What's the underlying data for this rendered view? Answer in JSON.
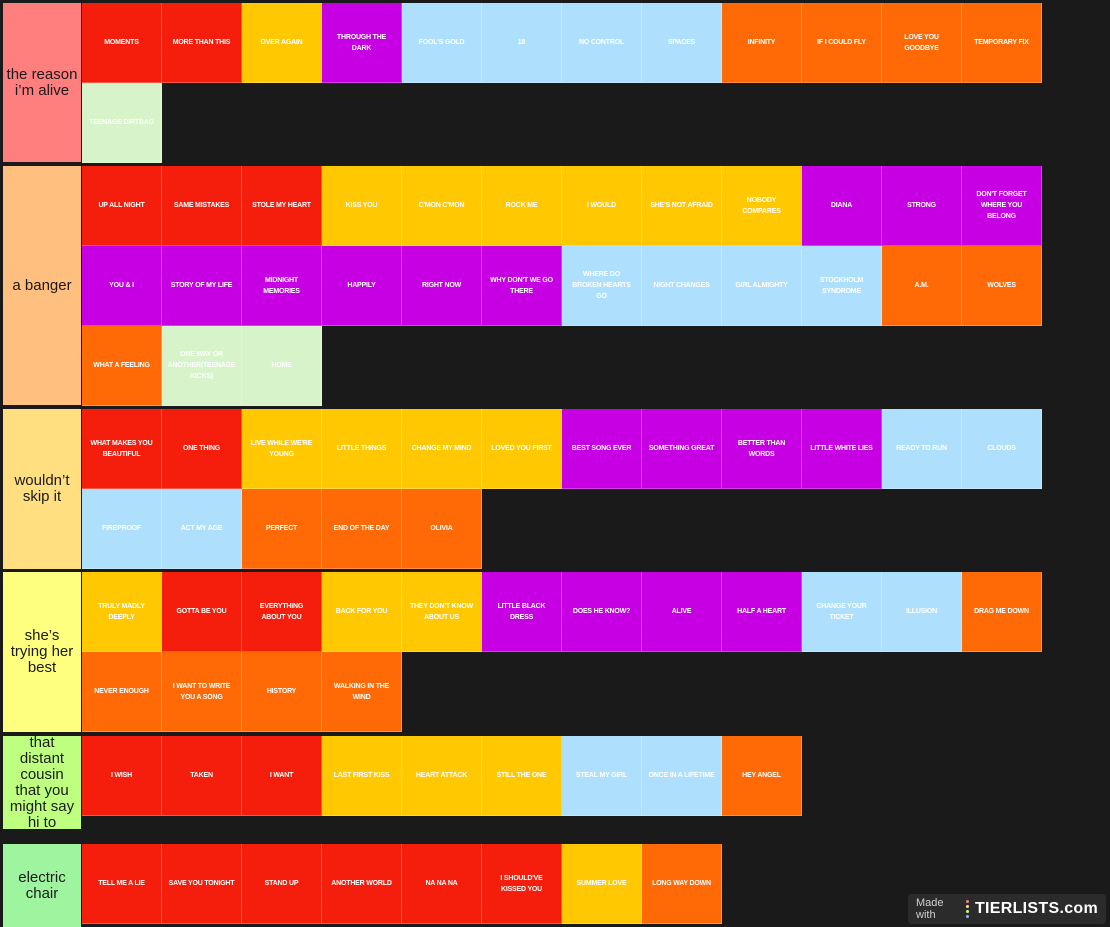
{
  "colors": {
    "red": "#f51d0b",
    "yellow": "#ffc800",
    "purple": "#c600e3",
    "blue": "#aee0fd",
    "orange": "#ff6a06",
    "green": "#d6f3c9",
    "background": "#1a1a1a"
  },
  "tiers": [
    {
      "label": "the reason i’m alive",
      "color": "#ff7f7f",
      "items": [
        {
          "text": "MOMENTS",
          "color": "red"
        },
        {
          "text": "MORE THAN THIS",
          "color": "red"
        },
        {
          "text": "OVER AGAIN",
          "color": "yellow"
        },
        {
          "text": "THROUGH THE DARK",
          "color": "purple"
        },
        {
          "text": "FOOL'S GOLD",
          "color": "blue"
        },
        {
          "text": "18",
          "color": "blue"
        },
        {
          "text": "NO CONTROL",
          "color": "blue"
        },
        {
          "text": "SPACES",
          "color": "blue"
        },
        {
          "text": "INFINITY",
          "color": "orange"
        },
        {
          "text": "IF I COULD FLY",
          "color": "orange"
        },
        {
          "text": "LOVE YOU GOODBYE",
          "color": "orange"
        },
        {
          "text": "TEMPORARY FIX",
          "color": "orange"
        },
        {
          "text": "TEENAGE DIRTBAG",
          "color": "green"
        }
      ]
    },
    {
      "label": "a banger",
      "color": "#ffbf7f",
      "items": [
        {
          "text": "UP ALL NIGHT",
          "color": "red"
        },
        {
          "text": "SAME MISTAKES",
          "color": "red"
        },
        {
          "text": "STOLE MY HEART",
          "color": "red"
        },
        {
          "text": "KISS YOU",
          "color": "yellow"
        },
        {
          "text": "C'MON C'MON",
          "color": "yellow"
        },
        {
          "text": "ROCK ME",
          "color": "yellow"
        },
        {
          "text": "I WOULD",
          "color": "yellow"
        },
        {
          "text": "SHE'S NOT AFRAID",
          "color": "yellow"
        },
        {
          "text": "NOBODY COMPARES",
          "color": "yellow"
        },
        {
          "text": "DIANA",
          "color": "purple"
        },
        {
          "text": "STRONG",
          "color": "purple"
        },
        {
          "text": "DON'T FORGET WHERE YOU BELONG",
          "color": "purple"
        },
        {
          "text": "YOU & I",
          "color": "purple"
        },
        {
          "text": "STORY OF MY LIFE",
          "color": "purple"
        },
        {
          "text": "MIDNIGHT MEMORIES",
          "color": "purple"
        },
        {
          "text": "HAPPILY",
          "color": "purple"
        },
        {
          "text": "RIGHT NOW",
          "color": "purple"
        },
        {
          "text": "WHY DON'T WE GO THERE",
          "color": "purple"
        },
        {
          "text": "WHERE DO BROKEN HEARTS GO",
          "color": "blue"
        },
        {
          "text": "NIGHT CHANGES",
          "color": "blue"
        },
        {
          "text": "GIRL ALMIGHTY",
          "color": "blue"
        },
        {
          "text": "STOCKHOLM SYNDROME",
          "color": "blue"
        },
        {
          "text": "A.M.",
          "color": "orange"
        },
        {
          "text": "WOLVES",
          "color": "orange"
        },
        {
          "text": "WHAT A FEELING",
          "color": "orange"
        },
        {
          "text": "ONE WAY OR ANOTHER(TEENAGE KICKS)",
          "color": "green"
        },
        {
          "text": "HOME",
          "color": "green"
        }
      ]
    },
    {
      "label": "wouldn’t skip it",
      "color": "#ffdf7f",
      "items": [
        {
          "text": "WHAT MAKES YOU BEAUTIFUL",
          "color": "red"
        },
        {
          "text": "ONE THING",
          "color": "red"
        },
        {
          "text": "LIVE WHILE WE'RE YOUNG",
          "color": "yellow"
        },
        {
          "text": "LITTLE THINGS",
          "color": "yellow"
        },
        {
          "text": "CHANGE MY MIND",
          "color": "yellow"
        },
        {
          "text": "LOVED YOU FIRST",
          "color": "yellow"
        },
        {
          "text": "BEST SONG EVER",
          "color": "purple"
        },
        {
          "text": "SOMETHING GREAT",
          "color": "purple"
        },
        {
          "text": "BETTER THAN WORDS",
          "color": "purple"
        },
        {
          "text": "LITTLE WHITE LIES",
          "color": "purple"
        },
        {
          "text": "READY TO RUN",
          "color": "blue"
        },
        {
          "text": "CLOUDS",
          "color": "blue"
        },
        {
          "text": "FIREPROOF",
          "color": "blue"
        },
        {
          "text": "ACT MY AGE",
          "color": "blue"
        },
        {
          "text": "PERFECT",
          "color": "orange"
        },
        {
          "text": "END OF THE DAY",
          "color": "orange"
        },
        {
          "text": "OLIVIA",
          "color": "orange"
        }
      ]
    },
    {
      "label": "she’s trying her best",
      "color": "#ffff7f",
      "items": [
        {
          "text": "TRULY MADLY DEEPLY",
          "color": "yellow"
        },
        {
          "text": "GOTTA BE YOU",
          "color": "red"
        },
        {
          "text": "EVERYTHING ABOUT YOU",
          "color": "red"
        },
        {
          "text": "BACK FOR YOU",
          "color": "yellow"
        },
        {
          "text": "THEY DON'T KNOW ABOUT US",
          "color": "yellow"
        },
        {
          "text": "LITTLE BLACK DRESS",
          "color": "purple"
        },
        {
          "text": "DOES HE KNOW?",
          "color": "purple"
        },
        {
          "text": "ALIVE",
          "color": "purple"
        },
        {
          "text": "HALF A HEART",
          "color": "purple"
        },
        {
          "text": "CHANGE YOUR TICKET",
          "color": "blue"
        },
        {
          "text": "ILLUSION",
          "color": "blue"
        },
        {
          "text": "DRAG ME DOWN",
          "color": "orange"
        },
        {
          "text": "NEVER ENOUGH",
          "color": "orange"
        },
        {
          "text": "I WANT TO WRITE YOU A SONG",
          "color": "orange"
        },
        {
          "text": "HISTORY",
          "color": "orange"
        },
        {
          "text": "WALKING IN THE WIND",
          "color": "orange"
        }
      ]
    },
    {
      "label": "that distant cousin that you might say hi to",
      "color": "#bfff7f",
      "items": [
        {
          "text": "I WISH",
          "color": "red"
        },
        {
          "text": "TAKEN",
          "color": "red"
        },
        {
          "text": "I WANT",
          "color": "red"
        },
        {
          "text": "LAST FIRST KISS",
          "color": "yellow"
        },
        {
          "text": "HEART ATTACK",
          "color": "yellow"
        },
        {
          "text": "STILL THE ONE",
          "color": "yellow"
        },
        {
          "text": "STEAL MY GIRL",
          "color": "blue"
        },
        {
          "text": "ONCE IN A LIFETIME",
          "color": "blue"
        },
        {
          "text": "HEY ANGEL",
          "color": "orange"
        }
      ]
    },
    {
      "label": "electric chair",
      "color": "#9ff59f",
      "items": [
        {
          "text": "TELL ME A LIE",
          "color": "red"
        },
        {
          "text": "SAVE YOU TONIGHT",
          "color": "red"
        },
        {
          "text": "STAND UP",
          "color": "red"
        },
        {
          "text": "ANOTHER WORLD",
          "color": "red"
        },
        {
          "text": "NA NA NA",
          "color": "red"
        },
        {
          "text": "I SHOULD'VE KISSED YOU",
          "color": "red"
        },
        {
          "text": "SUMMER LOVE",
          "color": "yellow"
        },
        {
          "text": "LONG WAY DOWN",
          "color": "orange"
        }
      ]
    }
  ],
  "watermark": {
    "made_with": "Made with",
    "brand": "TIERLISTS.com"
  }
}
